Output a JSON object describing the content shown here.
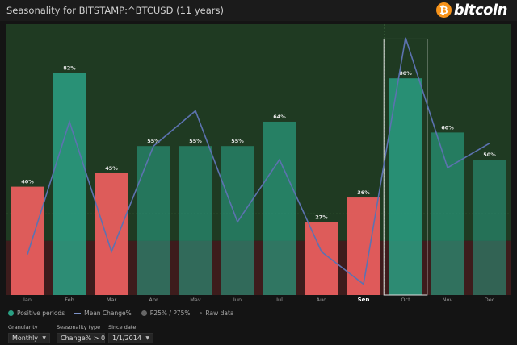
{
  "header": {
    "title": "Seasonality for BITSTAMP:^BTCUSD (11 years)",
    "brand": "bitcoin",
    "brand_glyph": "₿",
    "brand_color": "#f7931a"
  },
  "chart_data": {
    "type": "bar",
    "title": "Seasonality for BITSTAMP:^BTCUSD (11 years)",
    "categories": [
      "Jan",
      "Feb",
      "Mar",
      "Apr",
      "May",
      "Jun",
      "Jul",
      "Aug",
      "Sep",
      "Oct",
      "Nov",
      "Dec"
    ],
    "series": [
      {
        "name": "Positive periods",
        "unit": "%",
        "values": [
          40,
          82,
          45,
          55,
          55,
          55,
          64,
          27,
          36,
          80,
          60,
          50
        ],
        "labels": [
          "40%",
          "82%",
          "45%",
          "55%",
          "55%",
          "55%",
          "64%",
          "27%",
          "36%",
          "80%",
          "60%",
          "50%"
        ]
      },
      {
        "name": "Mean Change%",
        "note": "line overlay; relative level only, no axis shown",
        "values": [
          0.15,
          0.64,
          0.16,
          0.55,
          0.68,
          0.27,
          0.5,
          0.16,
          0.04,
          0.95,
          0.47,
          0.56
        ]
      }
    ],
    "ylim": [
      0,
      100
    ],
    "threshold": 20,
    "reference_lines": [
      30,
      62
    ],
    "highlight_column": "Oct",
    "current_month": "Sep",
    "legend": [
      "Positive periods",
      "Mean Change%",
      "P25% / P75%",
      "Raw data"
    ],
    "colors": {
      "positive_bar": "#2a9f83",
      "negative_bar": "#e85e5e",
      "mean_line": "#5c72b0",
      "upper_band": "#1f3a22",
      "lower_band": "#3d1c1c",
      "highlight": "#e0e0e0"
    }
  },
  "legend": {
    "items": [
      {
        "label": "Positive periods",
        "color": "#2a9f83"
      },
      {
        "label": "Mean Change%",
        "color": "#7c93c9"
      },
      {
        "label": "P25% / P75%",
        "color": "#666666"
      },
      {
        "label": "Raw data",
        "color": "#444444"
      }
    ]
  },
  "controls": {
    "granularity": {
      "label": "Granularity",
      "value": "Monthly"
    },
    "seasonality_type": {
      "label": "Seasonality type",
      "value": "Change% > 0"
    },
    "since_date": {
      "label": "Since date",
      "value": "1/1/2014"
    }
  }
}
